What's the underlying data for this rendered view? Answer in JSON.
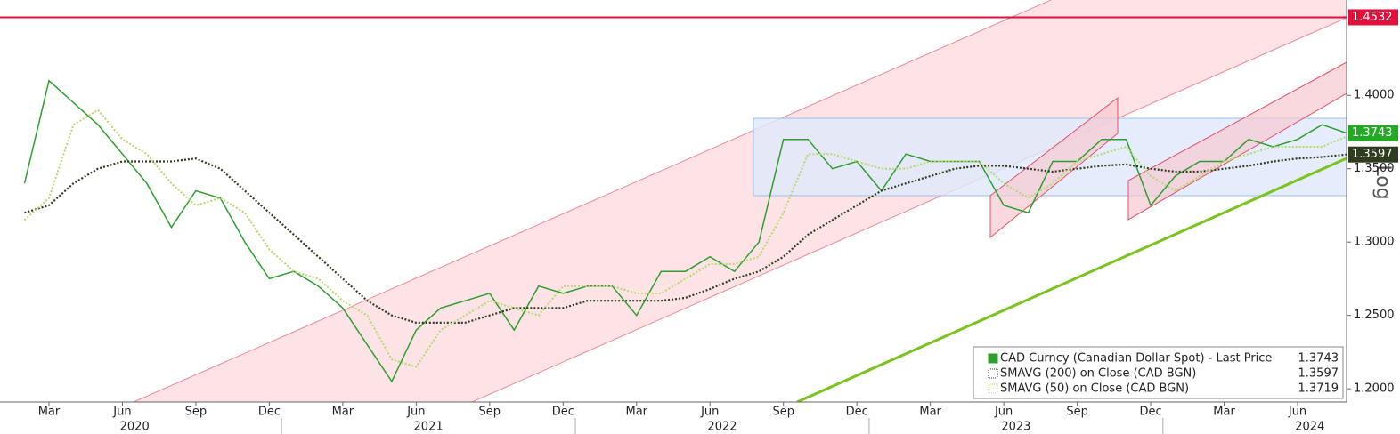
{
  "chart_data": {
    "type": "line",
    "x": [
      "2020-02",
      "2020-03",
      "2020-04",
      "2020-05",
      "2020-06",
      "2020-07",
      "2020-08",
      "2020-09",
      "2020-10",
      "2020-11",
      "2020-12",
      "2021-01",
      "2021-02",
      "2021-03",
      "2021-04",
      "2021-05",
      "2021-06",
      "2021-07",
      "2021-08",
      "2021-09",
      "2021-10",
      "2021-11",
      "2021-12",
      "2022-01",
      "2022-02",
      "2022-03",
      "2022-04",
      "2022-05",
      "2022-06",
      "2022-07",
      "2022-08",
      "2022-09",
      "2022-10",
      "2022-11",
      "2022-12",
      "2023-01",
      "2023-02",
      "2023-03",
      "2023-04",
      "2023-05",
      "2023-06",
      "2023-07",
      "2023-08",
      "2023-09",
      "2023-10",
      "2023-11",
      "2023-12",
      "2024-01",
      "2024-02",
      "2024-03",
      "2024-04",
      "2024-05",
      "2024-06",
      "2024-07",
      "2024-08"
    ],
    "series": [
      {
        "name": "CAD Curncy (Canadian Dollar Spot) - Last Price",
        "color": "#2e9e2e",
        "last_value": 1.3743,
        "label_color": "#22aa22",
        "values": [
          1.34,
          1.41,
          1.395,
          1.38,
          1.36,
          1.34,
          1.31,
          1.335,
          1.33,
          1.3,
          1.275,
          1.28,
          1.27,
          1.255,
          1.23,
          1.205,
          1.24,
          1.255,
          1.26,
          1.265,
          1.24,
          1.27,
          1.265,
          1.27,
          1.27,
          1.25,
          1.28,
          1.28,
          1.29,
          1.28,
          1.3,
          1.37,
          1.37,
          1.35,
          1.355,
          1.335,
          1.36,
          1.355,
          1.355,
          1.355,
          1.325,
          1.32,
          1.355,
          1.355,
          1.37,
          1.37,
          1.325,
          1.345,
          1.355,
          1.355,
          1.37,
          1.365,
          1.37,
          1.38,
          1.3743
        ]
      },
      {
        "name": "SMAVG (200)  on Close (CAD BGN)",
        "color": "#2f3d1f",
        "last_value": 1.3597,
        "label_color": "#2f3d1f",
        "values": [
          1.32,
          1.325,
          1.34,
          1.35,
          1.355,
          1.355,
          1.355,
          1.357,
          1.35,
          1.335,
          1.32,
          1.305,
          1.29,
          1.275,
          1.26,
          1.25,
          1.245,
          1.245,
          1.245,
          1.25,
          1.255,
          1.255,
          1.255,
          1.26,
          1.26,
          1.26,
          1.26,
          1.262,
          1.268,
          1.275,
          1.28,
          1.29,
          1.305,
          1.315,
          1.325,
          1.335,
          1.34,
          1.345,
          1.35,
          1.352,
          1.352,
          1.35,
          1.348,
          1.35,
          1.352,
          1.353,
          1.35,
          1.348,
          1.348,
          1.35,
          1.352,
          1.355,
          1.357,
          1.358,
          1.3597
        ]
      },
      {
        "name": "SMAVG (50)  on Close (CAD BGN)",
        "color": "#b5d96a",
        "last_value": 1.3719,
        "values": [
          1.315,
          1.33,
          1.38,
          1.39,
          1.37,
          1.36,
          1.34,
          1.325,
          1.33,
          1.32,
          1.295,
          1.28,
          1.275,
          1.26,
          1.25,
          1.22,
          1.215,
          1.24,
          1.25,
          1.26,
          1.255,
          1.25,
          1.27,
          1.27,
          1.27,
          1.265,
          1.265,
          1.275,
          1.285,
          1.285,
          1.29,
          1.32,
          1.36,
          1.36,
          1.355,
          1.35,
          1.35,
          1.355,
          1.355,
          1.355,
          1.34,
          1.33,
          1.34,
          1.355,
          1.36,
          1.365,
          1.345,
          1.335,
          1.345,
          1.355,
          1.36,
          1.365,
          1.365,
          1.365,
          1.3719
        ]
      }
    ],
    "xlim": [
      "2020-01",
      "2024-08"
    ],
    "xticks": [
      {
        "value": "2020-03",
        "label": "Mar"
      },
      {
        "value": "2020-06",
        "label": "Jun"
      },
      {
        "value": "2020-09",
        "label": "Sep"
      },
      {
        "value": "2020-12",
        "label": "Dec"
      },
      {
        "value": "2021-03",
        "label": "Mar"
      },
      {
        "value": "2021-06",
        "label": "Jun"
      },
      {
        "value": "2021-09",
        "label": "Sep"
      },
      {
        "value": "2021-12",
        "label": "Dec"
      },
      {
        "value": "2022-03",
        "label": "Mar"
      },
      {
        "value": "2022-06",
        "label": "Jun"
      },
      {
        "value": "2022-09",
        "label": "Sep"
      },
      {
        "value": "2022-12",
        "label": "Dec"
      },
      {
        "value": "2023-03",
        "label": "Mar"
      },
      {
        "value": "2023-06",
        "label": "Jun"
      },
      {
        "value": "2023-09",
        "label": "Sep"
      },
      {
        "value": "2023-12",
        "label": "Dec"
      },
      {
        "value": "2024-03",
        "label": "Mar"
      },
      {
        "value": "2024-06",
        "label": "Jun"
      }
    ],
    "years": [
      "2020",
      "2021",
      "2022",
      "2023",
      "2024"
    ],
    "ylim": [
      1.191,
      1.465
    ],
    "yticks": [
      {
        "value": 1.2,
        "label": "1.2000"
      },
      {
        "value": 1.25,
        "label": "1.2500"
      },
      {
        "value": 1.3,
        "label": "1.3000"
      },
      {
        "value": 1.35,
        "label": "1.3500"
      },
      {
        "value": 1.4,
        "label": "1.4000"
      }
    ],
    "hline": {
      "value": 1.4532,
      "color": "#e0103a"
    },
    "axis_scale_label": "Log",
    "legend": "bottom-right"
  }
}
